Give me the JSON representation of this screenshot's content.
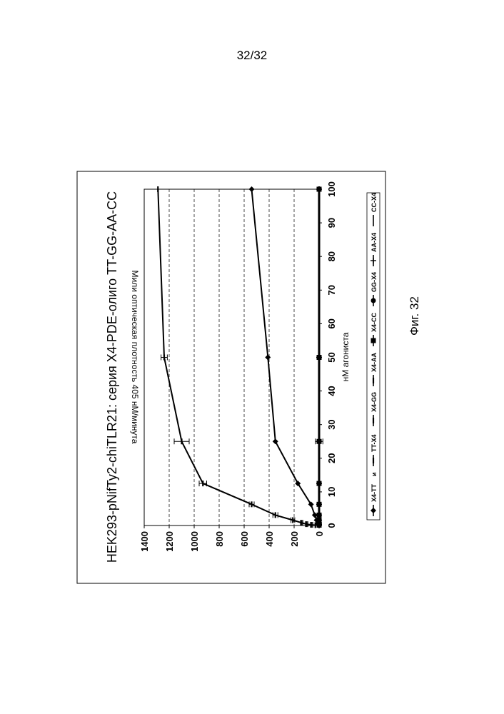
{
  "page": {
    "number": "32/32",
    "caption": "Фиг. 32"
  },
  "chart_data": {
    "type": "line",
    "title": "HEK293-pNifTy2-chiTLR21: серия X4-PDE-олиго TT-GG-AA-CC",
    "xlabel": "нМ агониста",
    "ylabel": "Мили оптическая плотность 405 нМ/минута",
    "xlim": [
      0,
      100
    ],
    "ylim": [
      0,
      1400
    ],
    "x_ticks": [
      "0",
      "10",
      "20",
      "30",
      "40",
      "50",
      "60",
      "70",
      "80",
      "90",
      "100"
    ],
    "y_ticks": [
      "0",
      "200",
      "400",
      "600",
      "800",
      "1000",
      "1200",
      "1400"
    ],
    "grid": "horizontal dashed",
    "legend_position": "bottom",
    "legend_connector": "и",
    "series": [
      {
        "name": "X4-TT",
        "marker": "diamond",
        "x": [
          0.1,
          0.2,
          0.4,
          0.8,
          1.6,
          3.1,
          6.3,
          12.5,
          25,
          50,
          100
        ],
        "y": [
          2,
          4,
          6,
          10,
          20,
          35,
          65,
          170,
          350,
          410,
          540
        ],
        "err": [
          0,
          0,
          0,
          0,
          0,
          0,
          0,
          0,
          0,
          0,
          0
        ]
      },
      {
        "name": "TT-X4",
        "marker": "dash",
        "x": [
          0.1,
          0.2,
          0.4,
          0.8,
          1.6,
          3.1,
          6.3,
          12.5,
          25,
          50,
          100
        ],
        "y": [
          30,
          60,
          100,
          140,
          210,
          350,
          540,
          930,
          1100,
          1240,
          1290
        ],
        "err": [
          0,
          10,
          10,
          10,
          15,
          20,
          20,
          30,
          60,
          25,
          0
        ]
      },
      {
        "name": "X4-GG",
        "marker": "dash",
        "x": [
          0.1,
          0.2,
          0.4,
          0.8,
          1.6,
          3.1,
          6.3,
          12.5,
          25,
          50,
          100
        ],
        "y": [
          0,
          0,
          0,
          0,
          0,
          0,
          0,
          0,
          0,
          0,
          0
        ],
        "err": [
          0,
          0,
          0,
          0,
          0,
          0,
          0,
          0,
          30,
          0,
          0
        ]
      },
      {
        "name": "X4-AA",
        "marker": "dash",
        "x": [
          0.1,
          0.2,
          0.4,
          0.8,
          1.6,
          3.1,
          6.3,
          12.5,
          25,
          50,
          100
        ],
        "y": [
          0,
          0,
          0,
          0,
          0,
          0,
          0,
          0,
          0,
          0,
          0
        ],
        "err": [
          0,
          0,
          0,
          0,
          0,
          0,
          0,
          0,
          0,
          0,
          0
        ]
      },
      {
        "name": "X4-CC",
        "marker": "square",
        "x": [
          0.1,
          0.2,
          0.4,
          0.8,
          1.6,
          3.1,
          6.3,
          12.5,
          25,
          50,
          100
        ],
        "y": [
          0,
          0,
          0,
          0,
          0,
          0,
          0,
          0,
          0,
          0,
          0
        ],
        "err": [
          0,
          0,
          0,
          0,
          0,
          0,
          0,
          0,
          0,
          0,
          0
        ]
      },
      {
        "name": "GG-X4",
        "marker": "circle",
        "x": [
          0.1,
          0.2,
          0.4,
          0.8,
          1.6,
          3.1,
          6.3,
          12.5,
          25,
          50,
          100
        ],
        "y": [
          0,
          0,
          0,
          0,
          0,
          0,
          0,
          0,
          0,
          0,
          0
        ],
        "err": [
          0,
          0,
          0,
          0,
          0,
          0,
          0,
          0,
          0,
          0,
          0
        ]
      },
      {
        "name": "AA-X4",
        "marker": "plus",
        "x": [
          0.1,
          0.2,
          0.4,
          0.8,
          1.6,
          3.1,
          6.3,
          12.5,
          25,
          50,
          100
        ],
        "y": [
          0,
          0,
          0,
          0,
          0,
          0,
          0,
          0,
          0,
          0,
          0
        ],
        "err": [
          0,
          0,
          0,
          0,
          0,
          0,
          0,
          0,
          0,
          0,
          0
        ]
      },
      {
        "name": "CC-X4",
        "marker": "none",
        "x": [
          0.1,
          0.2,
          0.4,
          0.8,
          1.6,
          3.1,
          6.3,
          12.5,
          25,
          50,
          100
        ],
        "y": [
          0,
          0,
          0,
          0,
          0,
          0,
          0,
          0,
          0,
          0,
          0
        ],
        "err": [
          0,
          0,
          0,
          0,
          0,
          0,
          0,
          0,
          0,
          0,
          0
        ]
      }
    ]
  }
}
